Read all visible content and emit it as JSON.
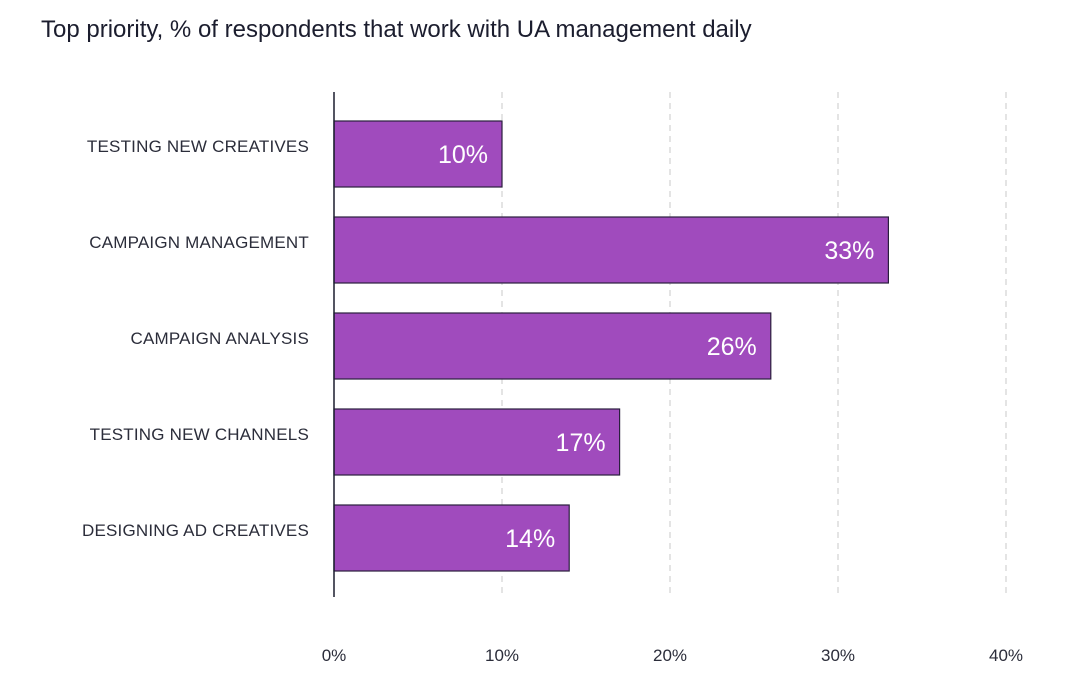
{
  "chart_data": {
    "type": "bar",
    "orientation": "horizontal",
    "title": "Top priority, % of respondents that work with UA management daily",
    "categories": [
      "TESTING NEW CREATIVES",
      "CAMPAIGN MANAGEMENT",
      "CAMPAIGN ANALYSIS",
      "TESTING NEW CHANNELS",
      "DESIGNING AD CREATIVES"
    ],
    "values": [
      10,
      33,
      26,
      17,
      14
    ],
    "value_labels": [
      "10%",
      "33%",
      "26%",
      "17%",
      "14%"
    ],
    "xlim": [
      0,
      40
    ],
    "x_ticks": [
      0,
      10,
      20,
      30,
      40
    ],
    "x_tick_labels": [
      "0%",
      "10%",
      "20%",
      "30%",
      "40%"
    ],
    "grid": true,
    "grid_style": "dashed",
    "legend": "none",
    "colors": {
      "bar_fill": "#a04bbd",
      "bar_stroke": "#2a1f3d",
      "grid": "#c8c8c8",
      "axis": "#1b1d2e"
    }
  }
}
